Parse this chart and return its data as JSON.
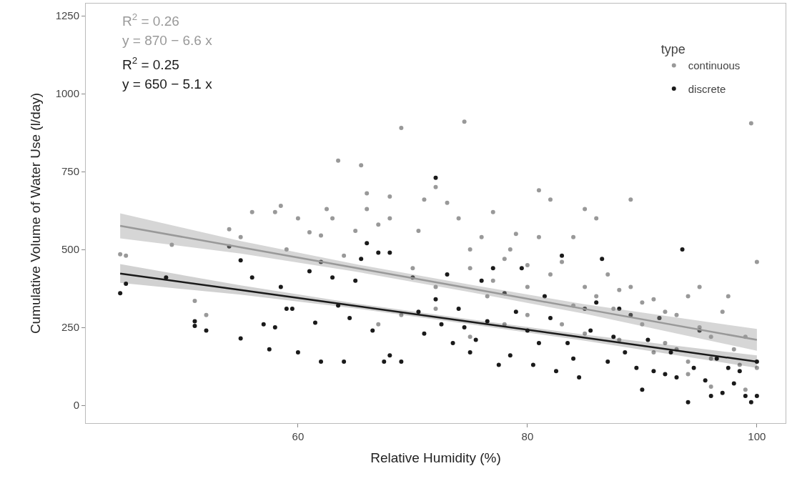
{
  "chart_data": {
    "type": "scatter",
    "xlabel": "Relative Humidity (%)",
    "ylabel": "Cumulative Volume of Water Use (l/day)",
    "legend_title": "type",
    "legend": "top right",
    "grid": false,
    "marker": "circle",
    "xlim": [
      41.5,
      102.5
    ],
    "xticks": [
      60,
      80,
      100
    ],
    "ylim": [
      -57,
      1289
    ],
    "yticks": [
      0,
      250,
      500,
      750,
      1000,
      1250
    ],
    "annotations": [
      "R$^{2}$ = 0.26",
      "y = 870 − 6.6 x",
      "R$^{2}$ = 0.25",
      "y = 650 − 5.1 x"
    ],
    "series": [
      {
        "name": "continuous",
        "color": "#999999",
        "x": [
          44.5,
          45,
          49,
          51,
          52,
          54,
          55,
          56,
          58,
          58.5,
          59,
          60,
          61,
          62,
          62.5,
          63,
          63.5,
          64,
          65,
          65.5,
          66,
          66,
          67,
          68,
          68,
          69,
          70,
          70.5,
          71,
          72,
          72,
          73,
          74,
          74.5,
          75,
          75,
          76,
          76.5,
          77,
          77,
          78,
          78.5,
          79,
          80,
          80,
          81,
          81,
          82,
          82,
          83,
          84,
          84,
          85,
          85,
          86,
          86,
          87,
          87.5,
          88,
          89,
          89,
          90,
          90,
          91,
          91.5,
          92,
          92,
          93,
          93,
          94,
          94,
          95,
          95,
          96,
          96,
          97,
          97.5,
          98,
          98.5,
          99,
          99,
          99.5,
          100,
          100,
          67,
          69,
          72,
          75,
          78,
          80,
          83,
          85,
          88,
          91,
          94,
          96
        ],
        "values": [
          485,
          480,
          515,
          335,
          290,
          565,
          540,
          620,
          620,
          640,
          500,
          600,
          555,
          545,
          630,
          600,
          785,
          480,
          560,
          770,
          680,
          630,
          580,
          600,
          670,
          890,
          440,
          560,
          660,
          700,
          380,
          650,
          600,
          910,
          500,
          440,
          540,
          350,
          620,
          400,
          470,
          500,
          550,
          450,
          380,
          690,
          540,
          660,
          420,
          460,
          540,
          320,
          630,
          380,
          600,
          350,
          420,
          310,
          370,
          660,
          380,
          330,
          260,
          340,
          280,
          300,
          200,
          290,
          180,
          350,
          140,
          380,
          250,
          220,
          150,
          300,
          350,
          180,
          130,
          220,
          50,
          905,
          460,
          120,
          260,
          290,
          310,
          220,
          260,
          290,
          260,
          230,
          210,
          170,
          100,
          60
        ]
      },
      {
        "name": "discrete",
        "color": "#1a1a1a",
        "x": [
          44.5,
          45,
          48.5,
          51,
          51,
          52,
          54,
          55,
          55,
          56,
          57,
          57.5,
          58,
          58.5,
          59,
          59.5,
          60,
          61,
          61.5,
          62,
          62,
          63,
          63.5,
          64,
          64.5,
          65,
          65.5,
          66,
          66.5,
          67,
          67.5,
          68,
          68,
          69,
          70,
          70.5,
          71,
          72,
          72,
          72.5,
          73,
          73.5,
          74,
          74.5,
          75,
          75.5,
          76,
          76.5,
          77,
          77.5,
          78,
          78.5,
          79,
          79.5,
          80,
          80.5,
          81,
          81.5,
          82,
          82.5,
          83,
          83.5,
          84,
          84.5,
          85,
          85.5,
          86,
          86.5,
          87,
          87.5,
          88,
          88.5,
          89,
          89.5,
          90,
          90.5,
          91,
          91.5,
          92,
          92.5,
          93,
          93.5,
          94,
          94.5,
          95,
          95.5,
          96,
          96.5,
          97,
          97.5,
          98,
          98.5,
          99,
          99.5,
          100,
          100
        ],
        "values": [
          360,
          390,
          410,
          255,
          270,
          240,
          510,
          465,
          215,
          410,
          260,
          180,
          250,
          380,
          310,
          310,
          170,
          430,
          265,
          140,
          460,
          410,
          320,
          140,
          280,
          400,
          470,
          520,
          240,
          490,
          140,
          490,
          160,
          140,
          410,
          300,
          230,
          730,
          340,
          260,
          420,
          200,
          310,
          250,
          170,
          210,
          400,
          270,
          440,
          130,
          360,
          160,
          300,
          440,
          240,
          130,
          200,
          350,
          280,
          110,
          480,
          200,
          150,
          90,
          310,
          240,
          330,
          470,
          140,
          220,
          310,
          170,
          290,
          120,
          50,
          210,
          110,
          280,
          100,
          170,
          90,
          500,
          10,
          120,
          240,
          80,
          30,
          150,
          40,
          120,
          70,
          110,
          30,
          10,
          30,
          140
        ]
      },
      {
        "type": "line",
        "marker": "none",
        "color": "#999999",
        "x": [
          44.5,
          55,
          65,
          75,
          85,
          100
        ],
        "values": [
          576,
          507,
          441,
          375,
          309,
          210
        ],
        "lower": [
          536,
          487,
          429,
          363,
          294,
          175
        ],
        "upper": [
          616,
          527,
          453,
          387,
          324,
          245
        ]
      },
      {
        "type": "line",
        "marker": "none",
        "color": "#1a1a1a",
        "x": [
          44.5,
          55,
          65,
          75,
          85,
          100
        ],
        "values": [
          423,
          370,
          319,
          268,
          217,
          140
        ],
        "lower": [
          393,
          355,
          311,
          260,
          207,
          120
        ],
        "upper": [
          453,
          385,
          327,
          276,
          227,
          160
        ]
      }
    ]
  }
}
